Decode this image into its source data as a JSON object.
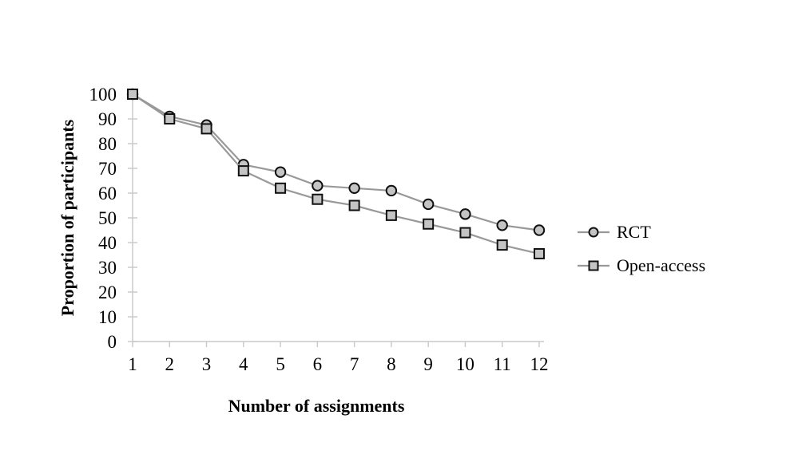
{
  "chart_data": {
    "type": "line",
    "x": [
      1,
      2,
      3,
      4,
      5,
      6,
      7,
      8,
      9,
      10,
      11,
      12
    ],
    "series": [
      {
        "name": "RCT",
        "marker": "circle",
        "values": [
          100,
          91,
          87.5,
          71.5,
          68.5,
          63,
          62,
          61,
          55.5,
          51.5,
          47,
          45
        ]
      },
      {
        "name": "Open-access",
        "marker": "square",
        "values": [
          100,
          90,
          86,
          69,
          62,
          57.5,
          55,
          51,
          47.5,
          44,
          39,
          35.5
        ]
      }
    ],
    "xlabel": "Number of assignments",
    "ylabel": "Proportion of participants",
    "ylim": [
      0,
      100
    ],
    "ytick_step": 10,
    "grid": false,
    "legend_position": "right",
    "colors": {
      "line": "#999999",
      "marker_fill": "#c4c4c4",
      "marker_stroke": "#111111",
      "axis": "#c8c8c8",
      "text": "#000000"
    }
  }
}
